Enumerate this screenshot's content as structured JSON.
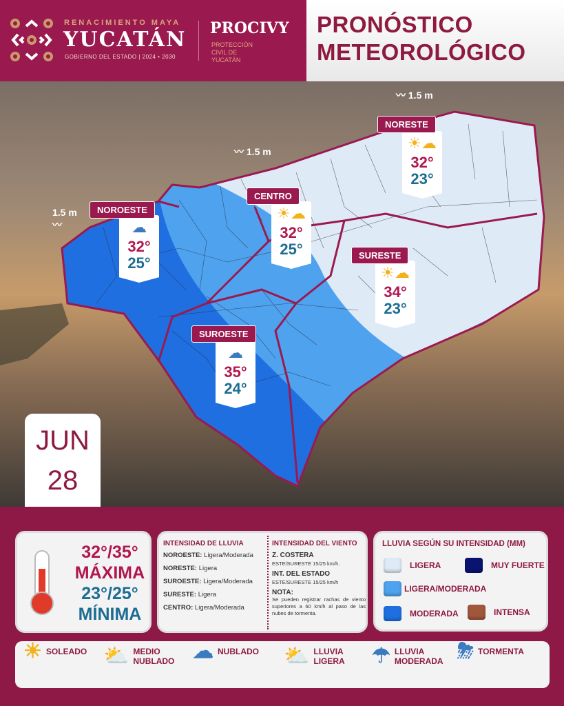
{
  "header": {
    "tagline": "RENACIMIENTO MAYA",
    "state": "YUCATÁN",
    "gov": "GOBIERNO DEL ESTADO | 2024 • 2030",
    "agency": "PROCIVY",
    "agency_sub": "PROTECCIÓN CIVIL DE YUCATÁN",
    "title_line1": "PRONÓSTICO",
    "title_line2": "METEOROLÓGICO"
  },
  "date": {
    "month": "JUN",
    "day": "28"
  },
  "waves": [
    "1.5 m",
    "1.5 m",
    "1.5 m"
  ],
  "regions": [
    {
      "name": "NOROESTE",
      "icon": "rain-moderate-icon",
      "max": "32°",
      "min": "25°"
    },
    {
      "name": "CENTRO",
      "icon": "rain-light-icon",
      "max": "32°",
      "min": "25°"
    },
    {
      "name": "NORESTE",
      "icon": "partly-cloudy-icon",
      "max": "32°",
      "min": "23°"
    },
    {
      "name": "SURESTE",
      "icon": "partly-cloudy-icon",
      "max": "34°",
      "min": "23°"
    },
    {
      "name": "SUROESTE",
      "icon": "rain-moderate-icon",
      "max": "35°",
      "min": "24°"
    }
  ],
  "temps": {
    "max_range": "32°/35°",
    "max_label": "MÁXIMA",
    "min_range": "23°/25°",
    "min_label": "MÍNIMA"
  },
  "rain": {
    "title": "INTENSIDAD DE LLUVIA",
    "items": [
      {
        "region": "NOROESTE:",
        "value": "Ligera/Moderada"
      },
      {
        "region": "NORESTE:",
        "value": "Ligera"
      },
      {
        "region": "SUROESTE:",
        "value": "Ligera/Moderada"
      },
      {
        "region": "SURESTE:",
        "value": "Ligera"
      },
      {
        "region": "CENTRO:",
        "value": "Ligera/Moderada"
      }
    ]
  },
  "wind": {
    "title": "INTENSIDAD DEL VIENTO",
    "coast_label": "Z. COSTERA",
    "coast_value": "ESTE/SURESTE  15/25 km/h.",
    "interior_label": "INT. DEL ESTADO",
    "interior_value": "ESTE/SURESTE  15/25 km/h",
    "note_label": "NOTA:",
    "note": "Se pueden registrar rachas de viento superiores a 60 km/h al paso de las nubes de tormenta."
  },
  "legend": {
    "title": "LLUVIA SEGÚN SU INTENSIDAD (MM)",
    "items": [
      {
        "label": "LIGERA",
        "color": "#dfeaf7"
      },
      {
        "label": "MUY FUERTE",
        "color": "#0a1370"
      },
      {
        "label": "LIGERA/MODERADA",
        "color": "#4ea2ee"
      },
      {
        "label": "MODERADA",
        "color": "#1f6fe0"
      },
      {
        "label": "INTENSA",
        "color": "#a0583c"
      }
    ]
  },
  "icons": [
    {
      "label": "SOLEADO",
      "icon": "sun-icon"
    },
    {
      "label": "MEDIO NUBLADO",
      "icon": "partly-cloudy-icon"
    },
    {
      "label": "NUBLADO",
      "icon": "cloud-icon"
    },
    {
      "label": "LLUVIA LIGERA",
      "icon": "rain-light-icon"
    },
    {
      "label": "LLUVIA MODERADA",
      "icon": "rain-moderate-icon"
    },
    {
      "label": "TORMENTA",
      "icon": "storm-icon"
    }
  ],
  "colors": {
    "brand": "#9a1a4f",
    "max_temp": "#b0174e",
    "min_temp": "#1d6c92"
  }
}
